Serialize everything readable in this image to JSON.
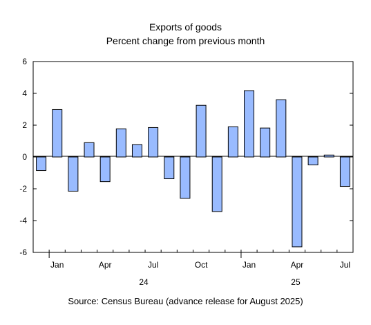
{
  "chart_data": {
    "type": "bar",
    "title": "Exports of goods",
    "subtitle": "Percent change from previous month",
    "source": "Source: Census Bureau (advance release for August 2025)",
    "x": [
      "2023-12",
      "2024-01",
      "2024-02",
      "2024-03",
      "2024-04",
      "2024-05",
      "2024-06",
      "2024-07",
      "2024-08",
      "2024-09",
      "2024-10",
      "2024-11",
      "2024-12",
      "2025-01",
      "2025-02",
      "2025-03",
      "2025-04",
      "2025-05",
      "2025-06",
      "2025-07"
    ],
    "values": [
      -0.85,
      2.98,
      -2.15,
      0.9,
      -1.55,
      1.77,
      0.78,
      1.85,
      -1.37,
      -2.6,
      3.25,
      -3.43,
      1.9,
      4.17,
      1.82,
      3.6,
      -5.65,
      -0.5,
      0.12,
      -1.85
    ],
    "tick_labels": [
      "Jan",
      "Apr",
      "Jul",
      "Oct",
      "Jan",
      "Apr",
      "Jul"
    ],
    "year_labels": [
      "24",
      "25"
    ],
    "ylim": [
      -6,
      6
    ],
    "yticks": [
      "6",
      "4",
      "2",
      "0",
      "-2",
      "-4",
      "-6"
    ],
    "bar_color": "#99bbff",
    "grid": false
  }
}
